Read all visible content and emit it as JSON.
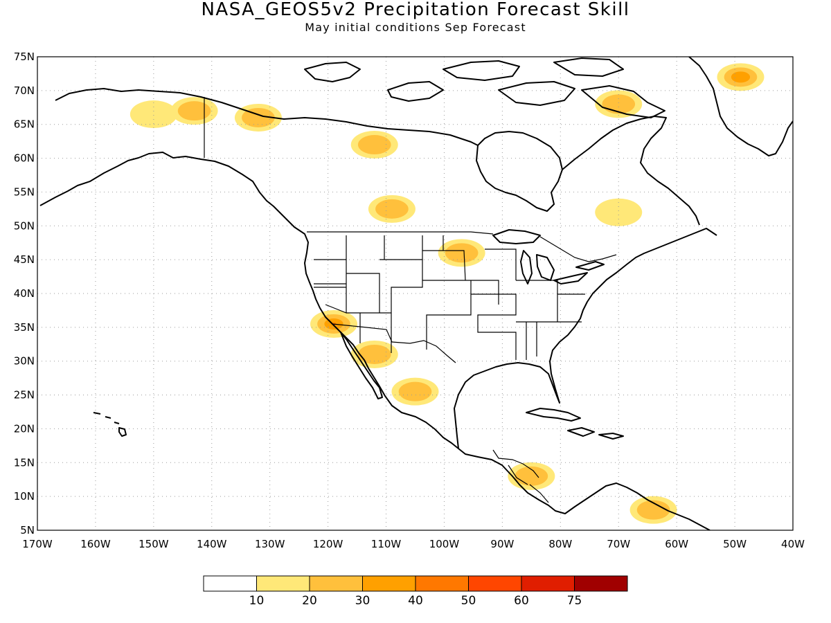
{
  "title": "NASA_GEOS5v2 Precipitation Forecast Skill",
  "subtitle": "May initial conditions  Sep Forecast",
  "map": {
    "lon_range": [
      -170,
      -40
    ],
    "lat_range": [
      5,
      75
    ],
    "lon_labels": [
      "170W",
      "160W",
      "150W",
      "140W",
      "130W",
      "120W",
      "110W",
      "100W",
      "90W",
      "80W",
      "70W",
      "60W",
      "50W",
      "40W"
    ],
    "lat_labels": [
      "5N",
      "10N",
      "15N",
      "20N",
      "25N",
      "30N",
      "35N",
      "40N",
      "45N",
      "50N",
      "55N",
      "60N",
      "65N",
      "70N",
      "75N"
    ],
    "grid": true,
    "background_color": "#ffffff",
    "coastline_color": "#000000"
  },
  "colorbar": {
    "colors": [
      "#ffffff",
      "#ffe878",
      "#ffc03c",
      "#ffa000",
      "#ff7800",
      "#ff4600",
      "#e01e00",
      "#a00000"
    ],
    "labels": [
      "10",
      "20",
      "30",
      "40",
      "50",
      "60",
      "75"
    ]
  },
  "skill_regions": [
    {
      "lon": -150,
      "lat": 66.5,
      "level": 1
    },
    {
      "lon": -143,
      "lat": 67,
      "level": 2
    },
    {
      "lon": -132,
      "lat": 66,
      "level": 2
    },
    {
      "lon": -112,
      "lat": 62,
      "level": 2
    },
    {
      "lon": -109,
      "lat": 52.5,
      "level": 2
    },
    {
      "lon": -97,
      "lat": 46,
      "level": 2
    },
    {
      "lon": -119,
      "lat": 35.5,
      "level": 4
    },
    {
      "lon": -112,
      "lat": 31,
      "level": 2
    },
    {
      "lon": -105,
      "lat": 25.5,
      "level": 2
    },
    {
      "lon": -85,
      "lat": 13,
      "level": 2
    },
    {
      "lon": -64,
      "lat": 8,
      "level": 2
    },
    {
      "lon": -49,
      "lat": 72,
      "level": 3
    },
    {
      "lon": -70,
      "lat": 68,
      "level": 2
    },
    {
      "lon": -70,
      "lat": 52,
      "level": 1
    }
  ]
}
